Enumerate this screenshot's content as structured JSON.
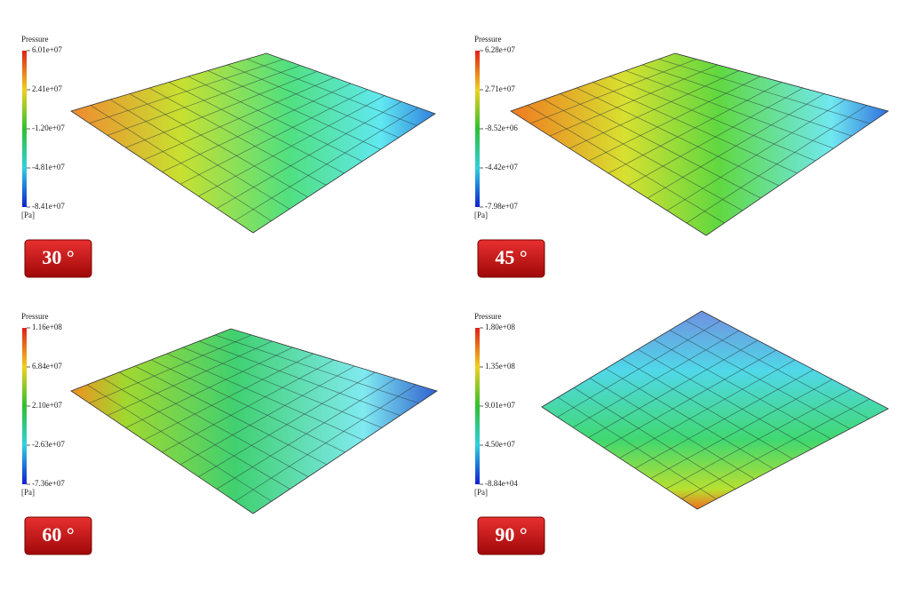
{
  "panels": [
    {
      "legend_title": "Pressure",
      "ticks": [
        "6.01e+07",
        "2.41e+07",
        "-1.20e+07",
        "-4.81e+07",
        "-8.41e+07"
      ],
      "unit": "[Pa]",
      "label": "30 °"
    },
    {
      "legend_title": "Pressure",
      "ticks": [
        "6.28e+07",
        "2.71e+07",
        "-8.52e+06",
        "-4.42e+07",
        "-7.98e+07"
      ],
      "unit": "[Pa]",
      "label": "45 °"
    },
    {
      "legend_title": "Pressure",
      "ticks": [
        "1.16e+08",
        "6.84e+07",
        "2.10e+07",
        "-2.63e+07",
        "-7.36e+07"
      ],
      "unit": "[Pa]",
      "label": "60 °"
    },
    {
      "legend_title": "Pressure",
      "ticks": [
        "1.80e+08",
        "1.35e+08",
        "9.01e+07",
        "4.50e+07",
        "-8.84e+04"
      ],
      "unit": "[Pa]",
      "label": "90 °"
    }
  ]
}
